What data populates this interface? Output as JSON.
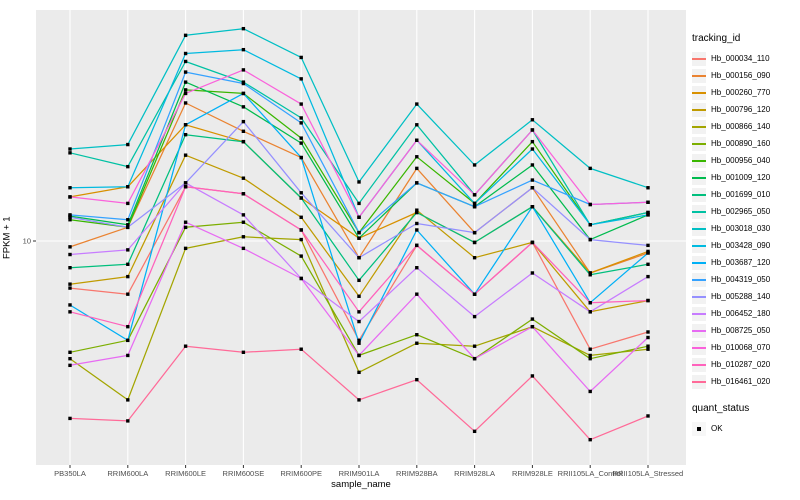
{
  "figure": {
    "panel_bg": "#EBEBEB",
    "grid_color": "#FFFFFF",
    "tick_mark_color": "#333333",
    "tick_label_color": "#4D4D4D",
    "point_color": "#000000",
    "background": "#FFFFFF"
  },
  "axes": {
    "x_title": "sample_name",
    "y_title": "FPKM + 1",
    "y_tick_label": "10"
  },
  "legend": {
    "title": "tracking_id"
  },
  "quant_legend": {
    "title": "quant_status",
    "items": [
      {
        "label": "OK",
        "symbol": "black-square-point"
      }
    ]
  },
  "chart_data": {
    "type": "line",
    "title": "",
    "xlabel": "sample_name",
    "ylabel": "FPKM + 1",
    "x_type": "categorical",
    "y_scale": "log10",
    "y_tick_values": [
      10
    ],
    "y_tick_labels": [
      "10"
    ],
    "ylim": [
      2.3,
      47
    ],
    "grid": true,
    "legend_position": "right",
    "point_shape": "small black square (quant_status OK)",
    "categories": [
      "PB350LA",
      "RRIM600LA",
      "RRIM600LE",
      "RRIM600SE",
      "RRIM600PE",
      "RRIM901LA",
      "RRIM928BA",
      "RRIM928LA",
      "RRIM928LE",
      "RRII105LA_Control",
      "RRII105LA_Stressed"
    ],
    "series": [
      {
        "name": "Hb_000034_110",
        "color": "#F8766D",
        "values": [
          7.2,
          6.9,
          14.6,
          13.9,
          10.8,
          5.0,
          9.7,
          6.9,
          9.9,
          4.7,
          5.3
        ]
      },
      {
        "name": "Hb_000156_090",
        "color": "#EA8331",
        "values": [
          9.6,
          11.0,
          26.2,
          21.5,
          17.9,
          8.9,
          16.6,
          10.6,
          14.5,
          8.0,
          9.2
        ]
      },
      {
        "name": "Hb_000260_770",
        "color": "#D89000",
        "values": [
          13.6,
          14.6,
          22.5,
          20.0,
          13.5,
          10.2,
          12.2,
          9.9,
          12.7,
          8.0,
          9.3
        ]
      },
      {
        "name": "Hb_000796_120",
        "color": "#C09B00",
        "values": [
          7.4,
          7.8,
          18.2,
          15.5,
          11.8,
          6.8,
          12.4,
          8.9,
          9.9,
          6.1,
          6.6
        ]
      },
      {
        "name": "Hb_000866_140",
        "color": "#A3A500",
        "values": [
          4.4,
          3.3,
          9.5,
          10.3,
          10.1,
          4.0,
          4.9,
          4.8,
          5.5,
          4.5,
          4.7
        ]
      },
      {
        "name": "Hb_000890_160",
        "color": "#7CAE00",
        "values": [
          4.6,
          5.0,
          11.0,
          11.4,
          9.0,
          4.5,
          5.2,
          4.4,
          5.8,
          4.4,
          4.8
        ]
      },
      {
        "name": "Hb_000956_040",
        "color": "#39B600",
        "values": [
          11.6,
          11.0,
          28.7,
          28.0,
          20.5,
          10.6,
          18.0,
          13.0,
          20.0,
          11.2,
          12.2
        ]
      },
      {
        "name": "Hb_001009_120",
        "color": "#00BB4E",
        "values": [
          11.9,
          11.2,
          30.3,
          25.5,
          19.8,
          10.2,
          15.0,
          12.7,
          17.0,
          10.1,
          12.0
        ]
      },
      {
        "name": "Hb_001699_010",
        "color": "#00BF7D",
        "values": [
          8.3,
          8.5,
          21.0,
          20.0,
          13.5,
          7.6,
          12.2,
          9.9,
          12.7,
          7.9,
          8.5
        ]
      },
      {
        "name": "Hb_002965_050",
        "color": "#00C1A3",
        "values": [
          18.5,
          16.8,
          35.0,
          30.3,
          23.6,
          13.0,
          22.5,
          13.8,
          21.7,
          11.2,
          12.2
        ]
      },
      {
        "name": "Hb_003018_030",
        "color": "#00BFC4",
        "values": [
          19.0,
          19.6,
          42.0,
          44.0,
          36.0,
          15.1,
          26.0,
          17.0,
          23.3,
          16.6,
          14.5
        ]
      },
      {
        "name": "Hb_003428_090",
        "color": "#00BAE0",
        "values": [
          14.5,
          14.6,
          37.0,
          38.0,
          31.0,
          11.8,
          20.2,
          13.0,
          19.0,
          11.2,
          12.0
        ]
      },
      {
        "name": "Hb_003687_120",
        "color": "#00B0F6",
        "values": [
          6.4,
          5.0,
          22.5,
          28.0,
          17.9,
          4.9,
          10.8,
          6.9,
          12.7,
          6.5,
          9.2
        ]
      },
      {
        "name": "Hb_004319_050",
        "color": "#35A2FF",
        "values": [
          12.0,
          11.6,
          32.5,
          30.0,
          22.8,
          10.6,
          15.0,
          12.7,
          15.3,
          12.9,
          13.1
        ]
      },
      {
        "name": "Hb_005288_140",
        "color": "#9590FF",
        "values": [
          11.8,
          11.0,
          15.0,
          23.0,
          14.0,
          8.9,
          11.3,
          10.6,
          14.5,
          10.1,
          9.7
        ]
      },
      {
        "name": "Hb_006452_180",
        "color": "#C77CFF",
        "values": [
          9.1,
          9.4,
          15.0,
          12.0,
          7.7,
          5.7,
          8.3,
          5.9,
          8.0,
          6.1,
          7.8
        ]
      },
      {
        "name": "Hb_008725_050",
        "color": "#E76BF3",
        "values": [
          4.2,
          4.5,
          11.4,
          9.5,
          7.7,
          4.5,
          6.9,
          4.4,
          5.5,
          3.5,
          5.1
        ]
      },
      {
        "name": "Hb_010068_070",
        "color": "#FA62DB",
        "values": [
          13.6,
          13.0,
          28.0,
          33.0,
          26.0,
          11.8,
          20.2,
          13.8,
          21.7,
          12.9,
          13.1
        ]
      },
      {
        "name": "Hb_010287_020",
        "color": "#FF62BC",
        "values": [
          6.1,
          5.5,
          14.6,
          13.9,
          10.8,
          6.1,
          9.7,
          6.9,
          9.9,
          6.5,
          6.6
        ]
      },
      {
        "name": "Hb_016461_020",
        "color": "#FF6A98",
        "values": [
          2.9,
          2.85,
          4.8,
          4.6,
          4.7,
          3.3,
          3.8,
          2.65,
          3.9,
          2.5,
          2.95
        ]
      }
    ]
  }
}
